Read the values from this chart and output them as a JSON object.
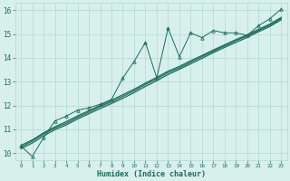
{
  "xlabel": "Humidex (Indice chaleur)",
  "xlim": [
    -0.5,
    23.5
  ],
  "ylim": [
    9.7,
    16.3
  ],
  "xticks": [
    0,
    1,
    2,
    3,
    4,
    5,
    6,
    7,
    8,
    9,
    10,
    11,
    12,
    13,
    14,
    15,
    16,
    17,
    18,
    19,
    20,
    21,
    22,
    23
  ],
  "yticks": [
    10,
    11,
    12,
    13,
    14,
    15,
    16
  ],
  "bg_color": "#d8f0ec",
  "grid_color": "#b0d8d0",
  "line_color": "#1a6b5a",
  "x_jagged": [
    0,
    1,
    2,
    3,
    4,
    5,
    6,
    7,
    8,
    9,
    10,
    11,
    12,
    13,
    14,
    15,
    16,
    17,
    18,
    19,
    20,
    21,
    22,
    23
  ],
  "y_jagged": [
    10.3,
    9.85,
    10.65,
    11.35,
    11.55,
    11.8,
    11.9,
    12.05,
    12.25,
    13.15,
    13.85,
    14.65,
    13.15,
    15.25,
    14.05,
    15.05,
    14.85,
    15.15,
    15.05,
    15.05,
    14.95,
    15.35,
    15.65,
    16.05
  ],
  "y_smooth1": [
    10.25,
    10.5,
    10.8,
    11.05,
    11.25,
    11.5,
    11.72,
    11.95,
    12.15,
    12.38,
    12.62,
    12.88,
    13.12,
    13.38,
    13.58,
    13.82,
    14.05,
    14.28,
    14.5,
    14.72,
    14.92,
    15.15,
    15.38,
    15.65
  ],
  "y_smooth2": [
    10.32,
    10.55,
    10.85,
    11.1,
    11.32,
    11.56,
    11.78,
    12.0,
    12.22,
    12.45,
    12.68,
    12.94,
    13.18,
    13.44,
    13.64,
    13.88,
    14.1,
    14.33,
    14.55,
    14.77,
    14.97,
    15.2,
    15.42,
    15.7
  ],
  "y_smooth3": [
    10.18,
    10.42,
    10.72,
    10.98,
    11.18,
    11.43,
    11.65,
    11.87,
    12.08,
    12.3,
    12.54,
    12.8,
    13.04,
    13.3,
    13.52,
    13.75,
    13.98,
    14.22,
    14.44,
    14.65,
    14.86,
    15.1,
    15.32,
    15.6
  ]
}
